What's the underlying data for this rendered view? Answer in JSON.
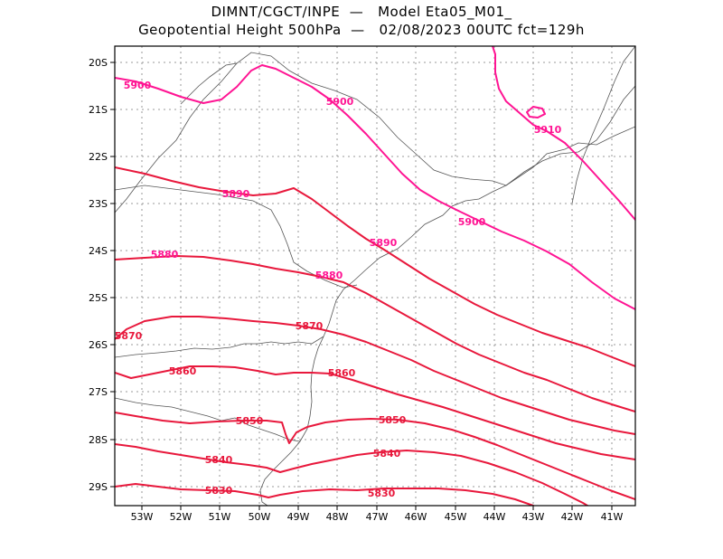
{
  "title": {
    "line1": "DIMNT/CGCT/INPE  —   Model Eta05_M01_",
    "line2": "Geopotential Height 500hPa  —   02/08/2023 00UTC fct=129h"
  },
  "axes": {
    "lon_labels": [
      "53W",
      "52W",
      "51W",
      "50W",
      "49W",
      "48W",
      "47W",
      "46W",
      "45W",
      "44W",
      "43W",
      "42W",
      "41W"
    ],
    "lat_labels": [
      "20S",
      "21S",
      "22S",
      "23S",
      "24S",
      "25S",
      "26S",
      "27S",
      "28S",
      "29S"
    ],
    "grid": "dotted"
  },
  "colors": {
    "contour_magenta": "#ff1493",
    "contour_red": "#e8183c",
    "coast": "#555555",
    "grid": "#9a9a9a"
  },
  "chart_data": {
    "type": "contour",
    "variable": "Geopotential Height 500hPa",
    "x_range": [
      "53.6W",
      "40.6W"
    ],
    "y_range": [
      "29.4S",
      "19.7S"
    ],
    "contour_levels": [
      5830,
      5840,
      5850,
      5860,
      5870,
      5880,
      5890,
      5900,
      5910
    ],
    "contour_labels": [
      "5900",
      "5900",
      "5910",
      "5890",
      "5890",
      "5900",
      "5880",
      "5880",
      "5870",
      "5870",
      "5860",
      "5860",
      "5850",
      "5850",
      "5840",
      "5840",
      "5830",
      "5830"
    ]
  }
}
